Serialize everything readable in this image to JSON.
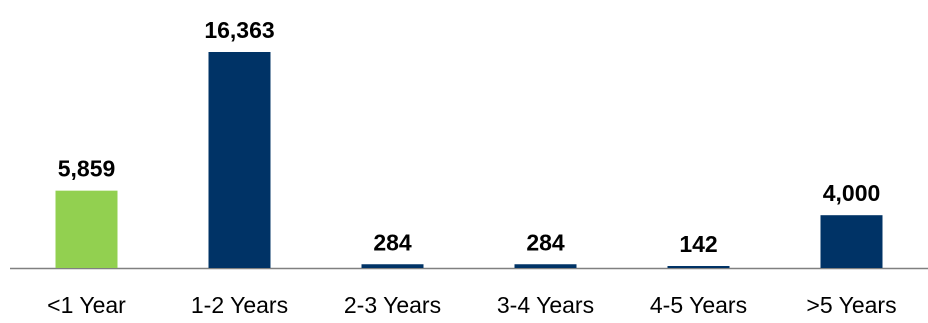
{
  "chart_data": {
    "type": "bar",
    "categories": [
      "<1 Year",
      "1-2 Years",
      "2-3 Years",
      "3-4 Years",
      "4-5 Years",
      ">5 Years"
    ],
    "values": [
      5859,
      16363,
      284,
      284,
      142,
      4000
    ],
    "data_labels": [
      "5,859",
      "16,363",
      "284",
      "284",
      "142",
      "4,000"
    ],
    "bar_colors": [
      "#92D050",
      "#003366",
      "#003366",
      "#003366",
      "#003366",
      "#003366"
    ],
    "axis_color": "#808080",
    "grid": false,
    "legend": "none",
    "ylim": [
      0,
      16363
    ]
  }
}
